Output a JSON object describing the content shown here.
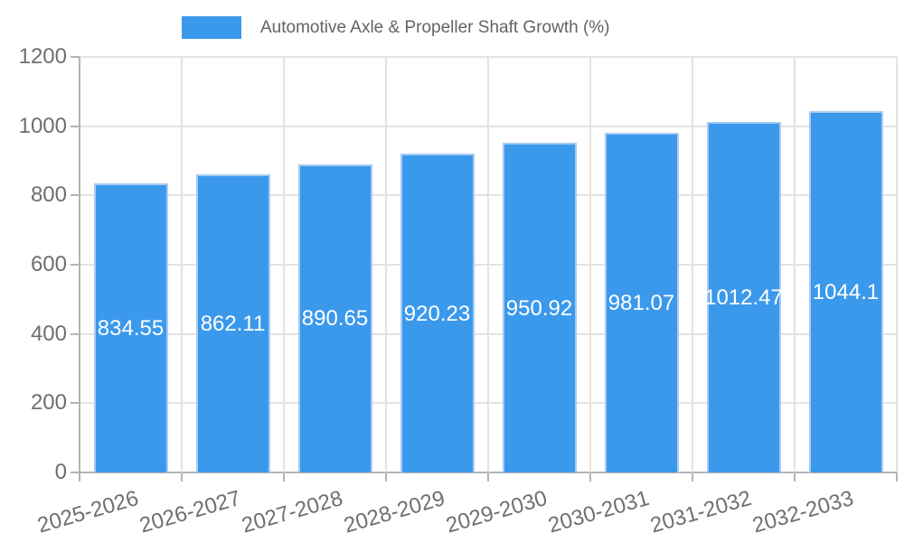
{
  "chart_data": {
    "type": "bar",
    "title": "Automotive Axle & Propeller Shaft Growth (%)",
    "legend_position": "top",
    "categories": [
      "2025-2026",
      "2026-2027",
      "2027-2028",
      "2028-2029",
      "2029-2030",
      "2030-2031",
      "2031-2032",
      "2032-2033"
    ],
    "values": [
      834.55,
      862.11,
      890.65,
      920.23,
      950.92,
      981.07,
      1012.47,
      1044.1
    ],
    "value_labels": [
      "834.55",
      "862.11",
      "890.65",
      "920.23",
      "950.92",
      "981.07",
      "1012.47",
      "1044.1"
    ],
    "xlabel": "",
    "ylabel": "",
    "ylim": [
      0,
      1200
    ],
    "yticks": [
      0,
      200,
      400,
      600,
      800,
      1000,
      1200
    ],
    "grid": true,
    "x_tick_rotation_deg": -16,
    "colors": {
      "bar_fill": "#3B99EC",
      "bar_border": "#A6CBF2",
      "value_label": "#FFFFFF",
      "grid_line": "#E3E3E3",
      "axis_line": "#B4B4B4",
      "axis_text": "#6F6F6F",
      "legend_text": "#636363"
    }
  }
}
